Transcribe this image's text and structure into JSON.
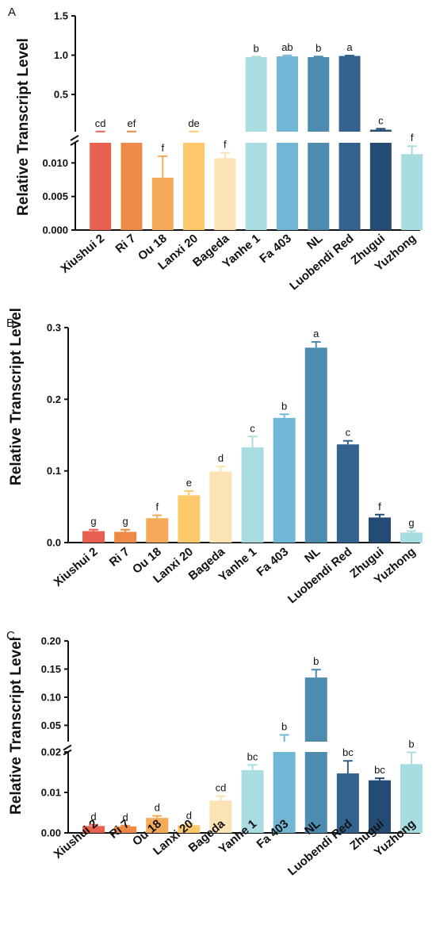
{
  "colors": [
    "#e8604f",
    "#ee8a48",
    "#f4aa58",
    "#fdc96b",
    "#fbe3b5",
    "#a9dde2",
    "#72b6d6",
    "#4d8caf",
    "#33628f",
    "#234b74",
    "#a7dce0"
  ],
  "chart_data": [
    {
      "panel": "A",
      "type": "bar",
      "ylabel": "Relative Transcript Level",
      "categories": [
        "Xiushui 2",
        "Ri 7",
        "Ou 18",
        "Lanxi 20",
        "Bageda",
        "Yanhe 1",
        "Fa 403",
        "NL",
        "Luobendi Red",
        "Zhugui",
        "Yuzhong"
      ],
      "values": [
        0.027,
        0.026,
        0.0078,
        0.026,
        0.0107,
        0.975,
        0.985,
        0.975,
        0.99,
        0.052,
        0.0113
      ],
      "errors": [
        0.002,
        0.003,
        0.0032,
        0.003,
        0.0008,
        0.006,
        0.012,
        0.008,
        0.005,
        0.012,
        0.0012
      ],
      "sig": [
        "cd",
        "ef",
        "f",
        "de",
        "f",
        "b",
        "ab",
        "b",
        "a",
        "c",
        "f"
      ],
      "broken_axis": true,
      "lower_ylim": [
        0,
        0.013
      ],
      "lower_ticks": [
        "0.000",
        "0.005",
        "0.010"
      ],
      "upper_ylim": [
        0.027,
        1.5
      ],
      "upper_ticks": [
        "0.5",
        "1.0",
        "1.5"
      ]
    },
    {
      "panel": "B",
      "type": "bar",
      "ylabel": "Relative Transcript Level",
      "categories": [
        "Xiushui 2",
        "Ri 7",
        "Ou 18",
        "Lanxi 20",
        "Bageda",
        "Yanhe 1",
        "Fa 403",
        "NL",
        "Luobendi Red",
        "Zhugui",
        "Yuzhong"
      ],
      "values": [
        0.016,
        0.015,
        0.034,
        0.066,
        0.099,
        0.133,
        0.174,
        0.272,
        0.137,
        0.035,
        0.014
      ],
      "errors": [
        0.002,
        0.003,
        0.004,
        0.006,
        0.007,
        0.015,
        0.005,
        0.008,
        0.005,
        0.004,
        0.002
      ],
      "sig": [
        "g",
        "g",
        "f",
        "e",
        "d",
        "c",
        "b",
        "a",
        "c",
        "f",
        "g"
      ],
      "broken_axis": false,
      "ylim": [
        0,
        0.3
      ],
      "ticks": [
        "0.0",
        "0.1",
        "0.2",
        "0.3"
      ]
    },
    {
      "panel": "C",
      "type": "bar",
      "ylabel": "Relative Transcript Level",
      "categories": [
        "Xiushui 2",
        "Ri 7",
        "Ou 18",
        "Lanxi 20",
        "Bageda",
        "Yanhe 1",
        "Fa 403",
        "NL",
        "Luobendi Red",
        "Zhugui",
        "Yuzhong"
      ],
      "values": [
        0.0017,
        0.0016,
        0.0037,
        0.0019,
        0.008,
        0.0155,
        0.021,
        0.135,
        0.0147,
        0.013,
        0.017
      ],
      "errors": [
        0.0003,
        0.0002,
        0.0005,
        0.0004,
        0.0011,
        0.0013,
        0.012,
        0.014,
        0.0031,
        0.0005,
        0.0029
      ],
      "sig": [
        "d",
        "d",
        "d",
        "d",
        "cd",
        "bc",
        "b",
        "b",
        "bc",
        "bc",
        "b"
      ],
      "broken_axis": true,
      "lower_ylim": [
        0,
        0.02
      ],
      "lower_ticks": [
        "0.00",
        "0.01",
        "0.02"
      ],
      "upper_ylim": [
        0.021,
        0.2
      ],
      "upper_ticks": [
        "0.05",
        "0.10",
        "0.15",
        "0.20"
      ]
    }
  ]
}
